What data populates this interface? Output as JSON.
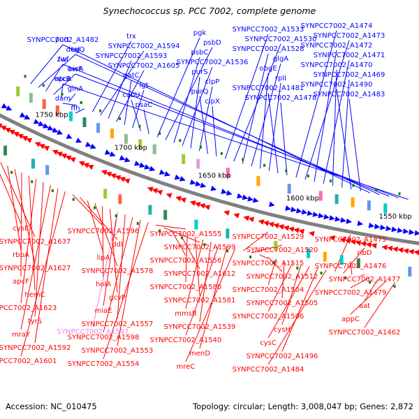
{
  "title": "Synechococcus sp. PCC 7002, complete genome",
  "footer": {
    "accession": "Accession: NC_010475",
    "summary": "Topology: circular; Length: 3,008,047 bp; Genes: 2,872"
  },
  "colors": {
    "forward": "#0000ff",
    "reverse": "#ff0000",
    "highlight": "#ee82ee",
    "backbone": "#808080",
    "tick": "#008000"
  },
  "scale_ticks": [
    "1750 kbp",
    "1700 kbp",
    "1650 kbp",
    "1600 kbp",
    "1550 kbp"
  ],
  "labels_forward": [
    "purL",
    "degQ",
    "fur",
    "hisF",
    "ntcB",
    "glnA",
    "dam",
    "ffh",
    "trx",
    "SYNPCC7002_A1594",
    "SYNPCC7002_A1593",
    "SYNPCC7002_A1605",
    "gatC",
    "lgt",
    "cobU",
    "psaC",
    "pgk",
    "psbD",
    "psbC",
    "SYNPCC7002_A1536",
    "purS",
    "clpP",
    "purQ",
    "clpX",
    "SYNPCC7002_A1533",
    "SYNPCC7002_A1530",
    "SYNPCC7002_A1528",
    "glgA",
    "obgE",
    "rplI",
    "SYNPCC7002_A1481",
    "SYNPCC7002_A1478",
    "SYNPCC7002_A1474",
    "SYNPCC7002_A1473",
    "SYNPCC7002_A1472",
    "SYNPCC7002_A1471",
    "SYNPCC7002_A1470",
    "SYNPCC7002_A1469",
    "SYNPCC7002_A1490",
    "SYNPCC7002_A1483",
    "SYNPCC7002_A1482",
    "tal",
    "zwf",
    "uvrA",
    "opcA"
  ],
  "labels_reverse": [
    "cysE",
    "SYNPCC7002_A1637",
    "rbpA",
    "SYNPCC7002_A1627",
    "apcF",
    "hemC",
    "SYNPCC7002_A1623",
    "tyrS",
    "mraY",
    "SYNPCC7002_A1592",
    "SYNPCC7002_A1601",
    "SYNPCC7002_A1596",
    "ddl",
    "lipA",
    "SYNPCC7002_A1578",
    "holA",
    "gcvP",
    "miaE",
    "SYNPCC7002_A1557",
    "SYNPCC7002_A1598",
    "SYNPCC7002_A1553",
    "SYNPCC7002_A1554",
    "SYNPCC7002_A1555",
    "SYNPCC7002_A1599",
    "SYNPCC7002_A1556",
    "SYNPCC7002_A1612",
    "SYNPCC7002_A1580",
    "SYNPCC7002_A1581",
    "mmsB",
    "SYNPCC7002_A1539",
    "SYNPCC7002_A1540",
    "menD",
    "mreC",
    "SYNPCC7002_A1529",
    "SYNPCC7002_A1520",
    "SYNPCC7002_A1515",
    "SYNPCC7002_A1512",
    "SYNPCC7002_A1504",
    "SYNPCC7002_A1505",
    "SYNPCC7002_A1506",
    "cysH",
    "cysC",
    "SYNPCC7002_A1496",
    "SYNPCC7002_A1484",
    "SYNPCC7002_A1475",
    "ribD",
    "SYNPCC7002_A1476",
    "SYNPCC7002_A1477",
    "SYNPCC7002_A1479",
    "aat",
    "appC",
    "SYNPCC7002_A1462"
  ],
  "labels_highlight": [
    "SYNPCC7002_A1597"
  ]
}
